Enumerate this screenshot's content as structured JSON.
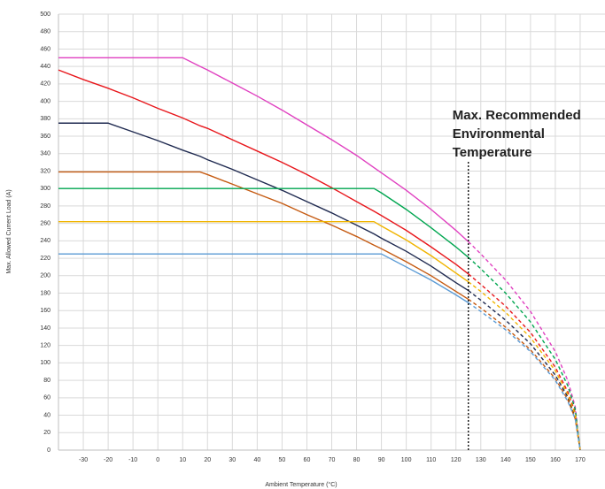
{
  "chart_data": {
    "type": "line",
    "x_label": "Ambient Temperature (°C)",
    "y_label": "Max. Allowed Current Load (A)",
    "x": [
      -40,
      -30,
      -20,
      -10,
      0,
      10,
      17,
      20,
      30,
      40,
      50,
      60,
      70,
      80,
      87,
      90,
      100,
      110,
      120,
      125,
      130,
      140,
      150,
      160,
      165,
      168,
      170
    ],
    "series": [
      {
        "color": "#e040c0",
        "values": [
          450,
          450,
          450,
          450,
          450,
          450,
          440,
          436,
          421,
          406,
          390,
          373,
          356,
          338,
          324,
          318,
          298,
          276,
          252,
          239,
          225,
          195,
          159,
          113,
          80,
          50,
          0
        ]
      },
      {
        "color": "#e8161b",
        "values": [
          436,
          425,
          415,
          404,
          392,
          381,
          372,
          369,
          356,
          343,
          330,
          316,
          301,
          285,
          274,
          269,
          252,
          233,
          213,
          202,
          190,
          165,
          135,
          95,
          67,
          43,
          0
        ]
      },
      {
        "color": "#1f2a50",
        "values": [
          375,
          375,
          375,
          365,
          355,
          344,
          337,
          333,
          322,
          310,
          298,
          285,
          272,
          258,
          248,
          243,
          228,
          211,
          192,
          183,
          172,
          149,
          122,
          86,
          61,
          38,
          0
        ]
      },
      {
        "color": "#c55a11",
        "values": [
          319,
          319,
          319,
          319,
          319,
          319,
          319,
          316,
          305,
          294,
          283,
          270,
          258,
          245,
          235,
          231,
          216,
          200,
          182,
          173,
          163,
          141,
          115,
          82,
          58,
          36,
          0
        ]
      },
      {
        "color": "#00a650",
        "values": [
          300,
          300,
          300,
          300,
          300,
          300,
          300,
          300,
          300,
          300,
          300,
          300,
          300,
          300,
          300,
          295,
          276,
          255,
          233,
          221,
          208,
          180,
          147,
          104,
          74,
          47,
          0
        ]
      },
      {
        "color": "#f0b400",
        "values": [
          262,
          262,
          262,
          262,
          262,
          262,
          262,
          262,
          262,
          262,
          262,
          262,
          262,
          262,
          262,
          257,
          241,
          223,
          203,
          193,
          182,
          158,
          129,
          91,
          64,
          41,
          0
        ]
      },
      {
        "color": "#5b9bd5",
        "values": [
          225,
          225,
          225,
          225,
          225,
          225,
          225,
          225,
          225,
          225,
          225,
          225,
          225,
          225,
          225,
          225,
          210,
          195,
          178,
          169,
          159,
          138,
          113,
          80,
          56,
          36,
          0
        ]
      }
    ],
    "xlim": [
      -40,
      180
    ],
    "ylim": [
      0,
      500
    ],
    "xticks": [
      -30,
      -20,
      -10,
      0,
      10,
      20,
      30,
      40,
      50,
      60,
      70,
      80,
      90,
      100,
      110,
      120,
      130,
      140,
      150,
      160,
      170
    ],
    "yticks": [
      0,
      20,
      40,
      60,
      80,
      100,
      120,
      140,
      160,
      180,
      200,
      220,
      240,
      260,
      280,
      300,
      320,
      340,
      360,
      380,
      400,
      420,
      440,
      460,
      480,
      500
    ],
    "grid": true,
    "annotation": {
      "x": 125,
      "lines": [
        "Max. Recommended",
        "Environmental",
        "Temperature"
      ]
    }
  }
}
